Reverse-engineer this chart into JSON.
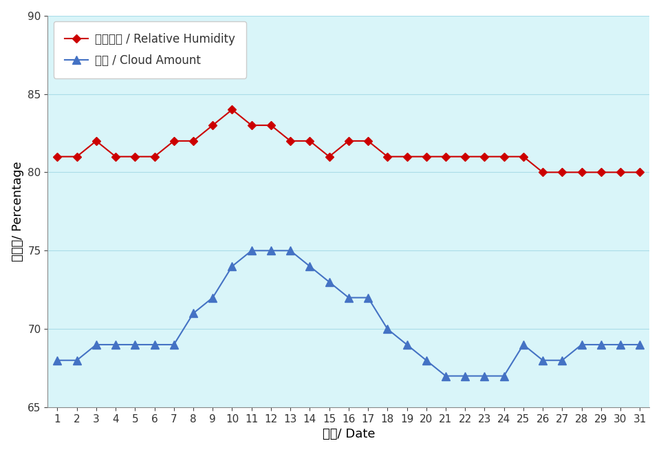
{
  "days": [
    1,
    2,
    3,
    4,
    5,
    6,
    7,
    8,
    9,
    10,
    11,
    12,
    13,
    14,
    15,
    16,
    17,
    18,
    19,
    20,
    21,
    22,
    23,
    24,
    25,
    26,
    27,
    28,
    29,
    30,
    31
  ],
  "relative_humidity": [
    81,
    81,
    82,
    81,
    81,
    81,
    82,
    82,
    83,
    84,
    83,
    83,
    82,
    82,
    81,
    82,
    82,
    81,
    81,
    81,
    81,
    81,
    81,
    81,
    81,
    80,
    80,
    80,
    80,
    80,
    80
  ],
  "cloud_amount": [
    68,
    68,
    69,
    69,
    69,
    69,
    69,
    71,
    72,
    74,
    75,
    75,
    75,
    74,
    73,
    72,
    72,
    70,
    69,
    68,
    67,
    67,
    67,
    67,
    69,
    68,
    68,
    69,
    69,
    69,
    69
  ],
  "rh_color": "#cc0000",
  "cloud_color": "#4472c4",
  "axes_bg_color": "#d9f5f9",
  "fig_bg_color": "#ffffff",
  "xlabel": "日期/ Date",
  "ylabel": "百分比/ Percentage",
  "rh_label": "相對濕度 / Relative Humidity",
  "cloud_label": "雲量 / Cloud Amount",
  "ylim": [
    65,
    90
  ],
  "yticks": [
    65,
    70,
    75,
    80,
    85,
    90
  ],
  "grid_color": "#aadde8",
  "axis_label_fontsize": 13,
  "tick_fontsize": 11,
  "legend_fontsize": 12,
  "line_width": 1.5,
  "rh_marker": "D",
  "cloud_marker": "^",
  "rh_markersize": 6,
  "cloud_markersize": 8
}
